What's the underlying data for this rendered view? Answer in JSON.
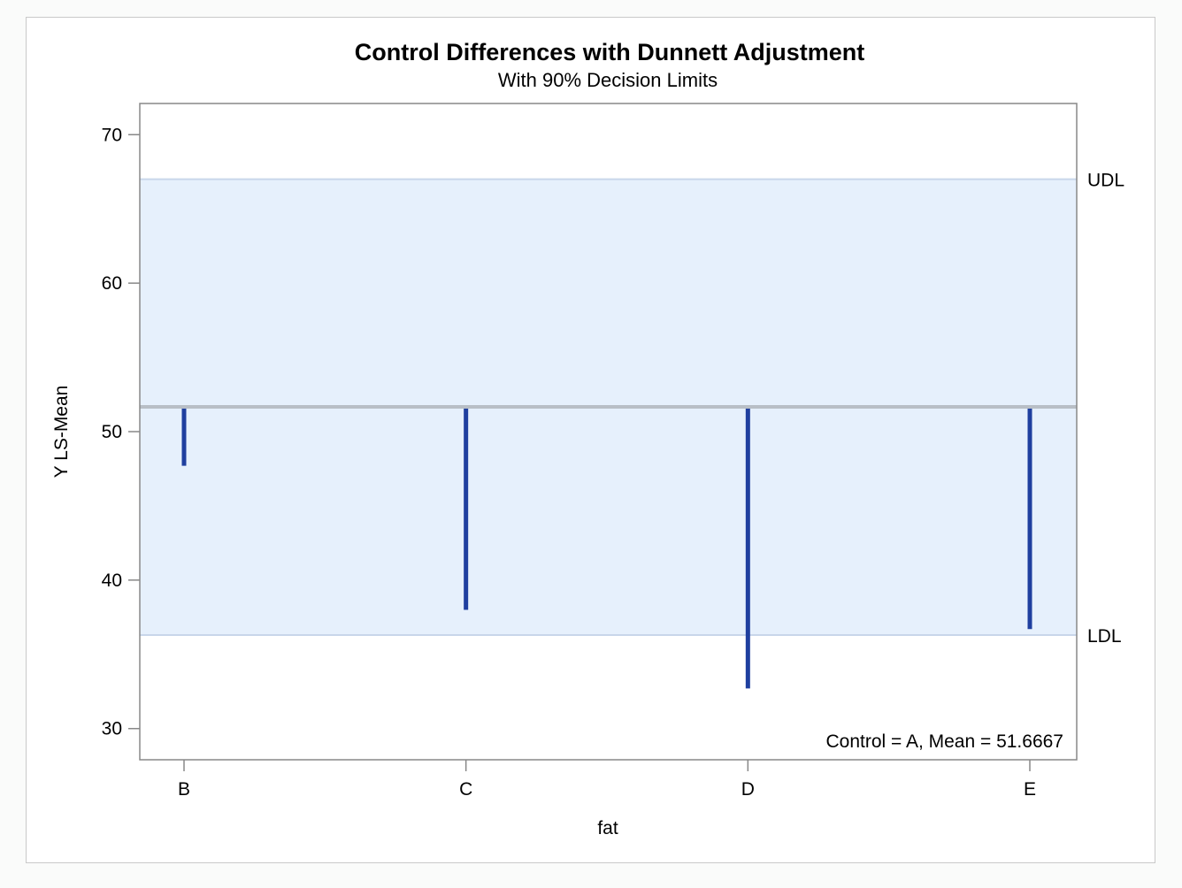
{
  "chart_data": {
    "type": "bar",
    "title": "Control Differences with Dunnett Adjustment",
    "subtitle": "With 90% Decision Limits",
    "xlabel": "fat",
    "ylabel": "Y LS-Mean",
    "categories": [
      "B",
      "C",
      "D",
      "E"
    ],
    "control_label": "A",
    "control_mean": 51.6667,
    "values": [
      47.7,
      38.0,
      32.7,
      36.7
    ],
    "ylim": [
      27.9,
      72.1
    ],
    "yticks": [
      30,
      40,
      50,
      60,
      70
    ],
    "reference_lines": [
      {
        "name": "UDL",
        "value": 67.0
      },
      {
        "name": "LDL",
        "value": 36.3
      }
    ],
    "annotation": "Control = A, Mean = 51.6667",
    "grid": false,
    "colors": {
      "bars": "#1f3f9f",
      "band_fill": "#e6f0fc",
      "band_edge": "#c8d6ea",
      "control_line": "#b8bec6",
      "axis": "#888888"
    }
  }
}
